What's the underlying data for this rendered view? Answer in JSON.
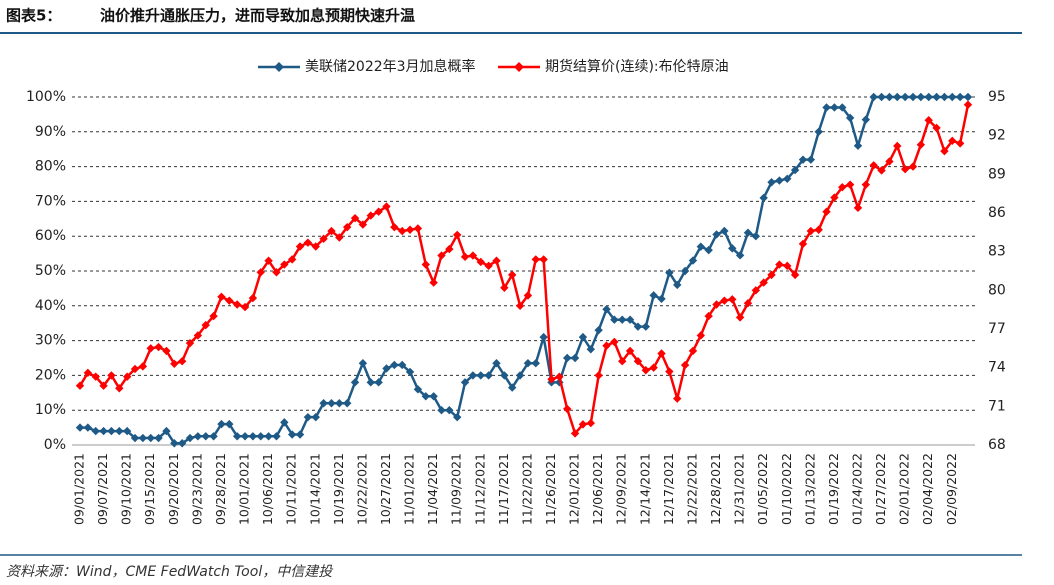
{
  "chart_data": {
    "type": "line",
    "label": "图表5：",
    "title": "油价推升通胀压力，进而导致加息预期快速升温",
    "source": "资料来源：Wind，CME FedWatch Tool，中信建投",
    "categories": [
      "09/01/2021",
      null,
      null,
      "09/07/2021",
      null,
      null,
      "09/10/2021",
      null,
      null,
      "09/15/2021",
      null,
      null,
      "09/20/2021",
      null,
      null,
      "09/23/2021",
      null,
      null,
      "09/28/2021",
      null,
      null,
      "10/01/2021",
      null,
      null,
      "10/06/2021",
      null,
      null,
      "10/11/2021",
      null,
      null,
      "10/14/2021",
      null,
      null,
      "10/19/2021",
      null,
      null,
      "10/22/2021",
      null,
      null,
      "10/27/2021",
      null,
      null,
      "11/01/2021",
      null,
      null,
      "11/04/2021",
      null,
      null,
      "11/09/2021",
      null,
      null,
      "11/12/2021",
      null,
      null,
      "11/17/2021",
      null,
      null,
      "11/22/2021",
      null,
      null,
      "11/26/2021",
      null,
      null,
      "12/01/2021",
      null,
      null,
      "12/06/2021",
      null,
      null,
      "12/09/2021",
      null,
      null,
      "12/14/2021",
      null,
      null,
      "12/17/2021",
      null,
      null,
      "12/22/2021",
      null,
      null,
      "12/28/2021",
      null,
      null,
      "12/31/2021",
      null,
      null,
      "01/05/2022",
      null,
      null,
      "01/10/2022",
      null,
      null,
      "01/13/2022",
      null,
      null,
      "01/19/2022",
      null,
      null,
      "01/24/2022",
      null,
      null,
      "01/27/2022",
      null,
      null,
      "02/01/2022",
      null,
      null,
      "02/04/2022",
      null,
      null,
      "02/09/2022",
      null,
      null
    ],
    "series": [
      {
        "name": "美联储2022年3月加息概率",
        "color": "#1f5a87",
        "axis": "y",
        "values": [
          5,
          5,
          4,
          4,
          4,
          4,
          4,
          2,
          2,
          2,
          2,
          4,
          0.5,
          0.5,
          2,
          2.5,
          2.5,
          2.5,
          6,
          6,
          2.5,
          2.5,
          2.5,
          2.5,
          2.5,
          2.5,
          6.5,
          3,
          3,
          8,
          8,
          12,
          12,
          12,
          12,
          18,
          23.5,
          18,
          18,
          22,
          23,
          23,
          21,
          16,
          14,
          14,
          10,
          10,
          8,
          18,
          20,
          20,
          20,
          23.5,
          20,
          16.5,
          20,
          23.5,
          23.5,
          31,
          18,
          18,
          25,
          25,
          31,
          27.5,
          33,
          39,
          36,
          36,
          36,
          34,
          34,
          43,
          42,
          49.5,
          46,
          50,
          53,
          57,
          56,
          60.5,
          61.5,
          56.5,
          54.5,
          61,
          60,
          71,
          75.5,
          76,
          76.5,
          79,
          82,
          82,
          90,
          97,
          97,
          97,
          94,
          86,
          93.5,
          100,
          100,
          100,
          100,
          100,
          100,
          100,
          100,
          100,
          100,
          100,
          100,
          100
        ]
      },
      {
        "name": "期货结算价(连续):布伦特原油",
        "color": "#ff0000",
        "axis": "y2",
        "values": [
          72.6,
          73.6,
          73.3,
          72.6,
          73.4,
          72.4,
          73.3,
          73.9,
          74.1,
          75.5,
          75.6,
          75.3,
          74.3,
          74.5,
          75.9,
          76.5,
          77.3,
          78.0,
          79.5,
          79.2,
          78.9,
          78.7,
          79.4,
          81.4,
          82.3,
          81.4,
          82.0,
          82.4,
          83.4,
          83.7,
          83.4,
          84.0,
          84.6,
          84.1,
          84.9,
          85.6,
          85.1,
          85.8,
          86.1,
          86.5,
          84.9,
          84.6,
          84.7,
          84.8,
          82.0,
          80.6,
          82.7,
          83.2,
          84.3,
          82.6,
          82.7,
          82.2,
          81.9,
          82.3,
          80.2,
          81.2,
          78.8,
          79.6,
          82.4,
          82.4,
          73.1,
          73.3,
          70.8,
          68.9,
          69.6,
          69.7,
          73.4,
          75.7,
          76.0,
          74.5,
          75.3,
          74.5,
          73.8,
          74.0,
          75.1,
          73.7,
          71.6,
          74.2,
          75.3,
          76.5,
          78.0,
          78.9,
          79.2,
          79.3,
          77.9,
          79.0,
          80.0,
          80.6,
          81.2,
          82.0,
          81.9,
          81.2,
          83.6,
          84.6,
          84.7,
          86.1,
          87.2,
          88.0,
          88.2,
          86.4,
          88.2,
          89.7,
          89.3,
          90.0,
          91.2,
          89.4,
          89.6,
          91.3,
          93.2,
          92.6,
          90.8,
          91.6,
          91.4,
          94.4
        ]
      }
    ],
    "ylim": [
      0,
      100
    ],
    "yticks": [
      {
        "value": 0,
        "label": "0%"
      },
      {
        "value": 10,
        "label": "10%"
      },
      {
        "value": 20,
        "label": "20%"
      },
      {
        "value": 30,
        "label": "30%"
      },
      {
        "value": 40,
        "label": "40%"
      },
      {
        "value": 50,
        "label": "50%"
      },
      {
        "value": 60,
        "label": "60%"
      },
      {
        "value": 70,
        "label": "70%"
      },
      {
        "value": 80,
        "label": "80%"
      },
      {
        "value": 90,
        "label": "90%"
      },
      {
        "value": 100,
        "label": "100%"
      }
    ],
    "y2lim": [
      68,
      95
    ],
    "y2ticks": [
      68,
      71,
      74,
      77,
      80,
      83,
      86,
      89,
      92,
      95
    ],
    "grid": true,
    "legend": "top"
  }
}
